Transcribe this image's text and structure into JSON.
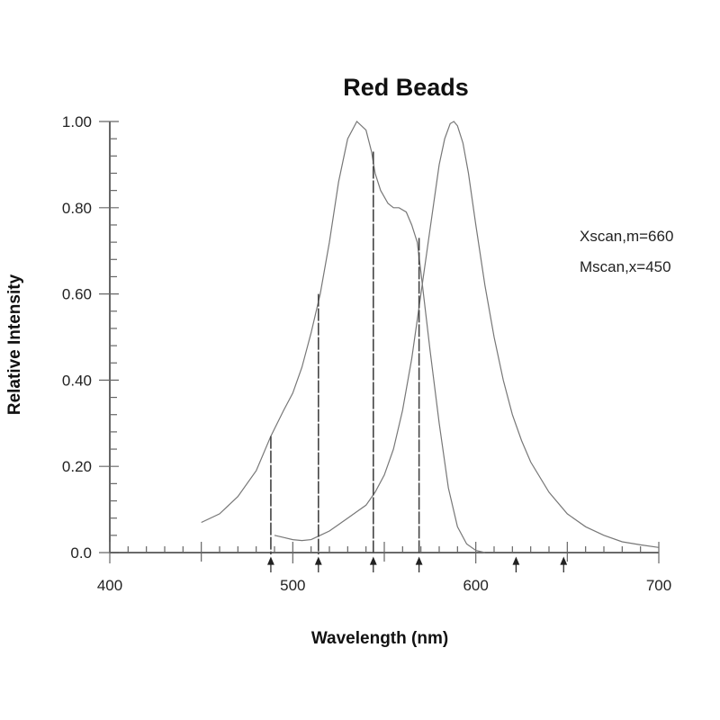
{
  "chart_data": {
    "type": "line",
    "title": "Red Beads",
    "xlabel": "Wavelength (nm)",
    "ylabel": "Relative Intensity",
    "xlim": [
      400,
      700
    ],
    "ylim": [
      0,
      1.0
    ],
    "x_ticks": [
      400,
      500,
      600,
      700
    ],
    "x_tick_labels": [
      "400",
      "500",
      "600",
      "700"
    ],
    "y_ticks": [
      0.0,
      0.2,
      0.4,
      0.6,
      0.8,
      1.0
    ],
    "y_tick_labels": [
      "0.0",
      "0.20",
      "0.40",
      "0.60",
      "0.80",
      "1.00"
    ],
    "grid": false,
    "legend_position": "right",
    "legend": [
      "Xscan,m=660",
      "Mscan,x=450"
    ],
    "series": [
      {
        "name": "Xscan,m=660",
        "color": "#777777",
        "x": [
          450,
          460,
          470,
          480,
          488,
          495,
          500,
          505,
          510,
          515,
          520,
          525,
          530,
          535,
          540,
          543,
          545,
          548,
          552,
          555,
          558,
          562,
          565,
          568,
          570,
          575,
          580,
          585,
          590,
          595,
          600,
          605
        ],
        "y": [
          0.07,
          0.09,
          0.13,
          0.19,
          0.27,
          0.33,
          0.37,
          0.43,
          0.51,
          0.6,
          0.72,
          0.86,
          0.96,
          1.0,
          0.98,
          0.93,
          0.88,
          0.84,
          0.81,
          0.8,
          0.8,
          0.79,
          0.76,
          0.72,
          0.65,
          0.47,
          0.3,
          0.15,
          0.06,
          0.02,
          0.005,
          0.0
        ]
      },
      {
        "name": "Mscan,x=450",
        "color": "#777777",
        "x": [
          490,
          495,
          500,
          505,
          510,
          515,
          520,
          525,
          530,
          535,
          540,
          545,
          550,
          555,
          560,
          565,
          570,
          575,
          580,
          583,
          586,
          588,
          590,
          593,
          596,
          600,
          605,
          610,
          615,
          620,
          625,
          630,
          640,
          650,
          660,
          670,
          680,
          690,
          700
        ],
        "y": [
          0.04,
          0.035,
          0.03,
          0.028,
          0.03,
          0.04,
          0.05,
          0.065,
          0.08,
          0.095,
          0.11,
          0.14,
          0.18,
          0.24,
          0.33,
          0.45,
          0.6,
          0.75,
          0.9,
          0.96,
          0.995,
          1.0,
          0.99,
          0.95,
          0.88,
          0.76,
          0.62,
          0.5,
          0.4,
          0.32,
          0.26,
          0.21,
          0.14,
          0.09,
          0.06,
          0.04,
          0.025,
          0.018,
          0.012
        ]
      }
    ],
    "droplines": [
      {
        "x": 488,
        "y": 0.27
      },
      {
        "x": 514,
        "y": 0.6
      },
      {
        "x": 544,
        "y": 0.93
      },
      {
        "x": 569,
        "y": 0.73
      }
    ],
    "markers_x": [
      488,
      514,
      544,
      569,
      622,
      648
    ]
  }
}
